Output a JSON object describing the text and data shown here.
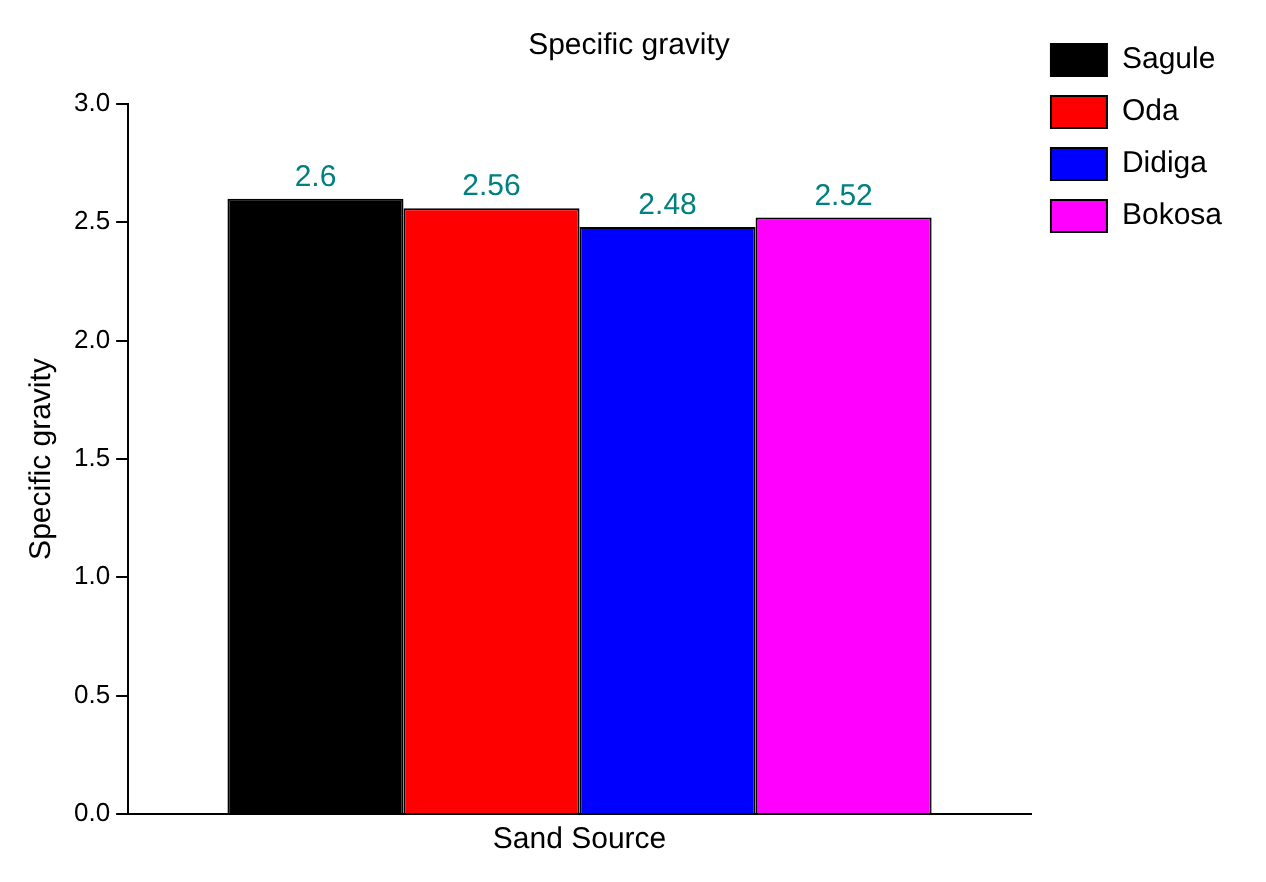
{
  "chart_data": {
    "type": "bar",
    "title": "Specific gravity",
    "xlabel": "Sand Source",
    "ylabel": "Specific gravity",
    "categories": [
      null
    ],
    "series": [
      {
        "name": "Sagule",
        "color": "#000000",
        "values": [
          2.6
        ]
      },
      {
        "name": "Oda",
        "color": "#ff0000",
        "values": [
          2.56
        ]
      },
      {
        "name": "Didiga",
        "color": "#0000ff",
        "values": [
          2.48
        ]
      },
      {
        "name": "Bokosa",
        "color": "#ff00ff",
        "values": [
          2.52
        ]
      }
    ],
    "ylim": [
      0,
      3
    ],
    "yticks": [
      {
        "value": 0,
        "label": "0.0"
      },
      {
        "value": 0.5,
        "label": "0.5"
      },
      {
        "value": 1,
        "label": "1.0"
      },
      {
        "value": 1.5,
        "label": "1.5"
      },
      {
        "value": 2,
        "label": "2.0"
      },
      {
        "value": 2.5,
        "label": "2.5"
      },
      {
        "value": 3,
        "label": "3.0"
      }
    ],
    "data_labels": true,
    "grid": false,
    "legend": "top right",
    "tick_labels": "y"
  }
}
